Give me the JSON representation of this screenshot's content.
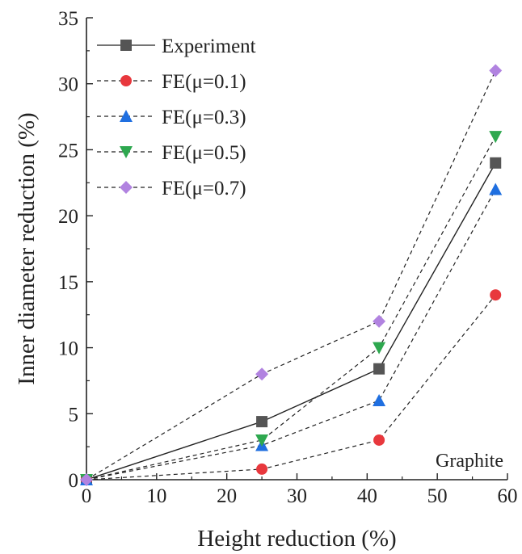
{
  "chart_data": {
    "type": "line",
    "xlabel": "Height reduction (%)",
    "ylabel": "Inner diameter reduction (%)",
    "xlim": [
      0,
      60
    ],
    "ylim": [
      0,
      35
    ],
    "xticks": [
      0,
      10,
      20,
      30,
      40,
      50,
      60
    ],
    "yticks": [
      0,
      5,
      10,
      15,
      20,
      25,
      30,
      35
    ],
    "grid": false,
    "legend_position": "top-left",
    "annotation": "Graphite",
    "x": [
      0,
      25,
      41.7,
      58.3
    ],
    "series": [
      {
        "name": "Experiment",
        "values": [
          0,
          4.4,
          8.4,
          24
        ],
        "color": "#555555",
        "marker": "square",
        "line": "solid"
      },
      {
        "name": "FE(μ=0.1)",
        "values": [
          0,
          0.8,
          3,
          14
        ],
        "color": "#e8383d",
        "marker": "circle",
        "line": "dashed"
      },
      {
        "name": "FE(μ=0.3)",
        "values": [
          0,
          2.6,
          6,
          22
        ],
        "color": "#1f6fe0",
        "marker": "triangle-up",
        "line": "dashed"
      },
      {
        "name": "FE(μ=0.5)",
        "values": [
          0,
          3,
          10,
          26
        ],
        "color": "#2ea84f",
        "marker": "triangle-down",
        "line": "dashed"
      },
      {
        "name": "FE(μ=0.7)",
        "values": [
          0,
          8,
          12,
          31
        ],
        "color": "#b183e0",
        "marker": "diamond",
        "line": "dashed"
      }
    ]
  }
}
